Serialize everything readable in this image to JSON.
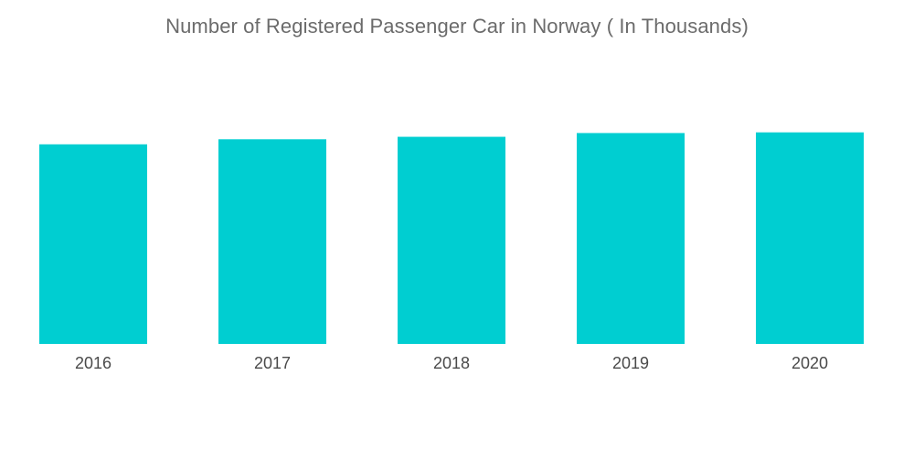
{
  "chart_data": {
    "type": "bar",
    "title": "Number of Registered Passenger Car in Norway ( In Thousands)",
    "categories": [
      "2016",
      "2017",
      "2018",
      "2019",
      "2020"
    ],
    "values": [
      2654,
      2721,
      2754,
      2804,
      2813
    ],
    "xlabel": "",
    "ylabel": "",
    "ylim": [
      0,
      3600
    ],
    "grid": false,
    "legend": "none",
    "bar_color": "#00ced1"
  }
}
